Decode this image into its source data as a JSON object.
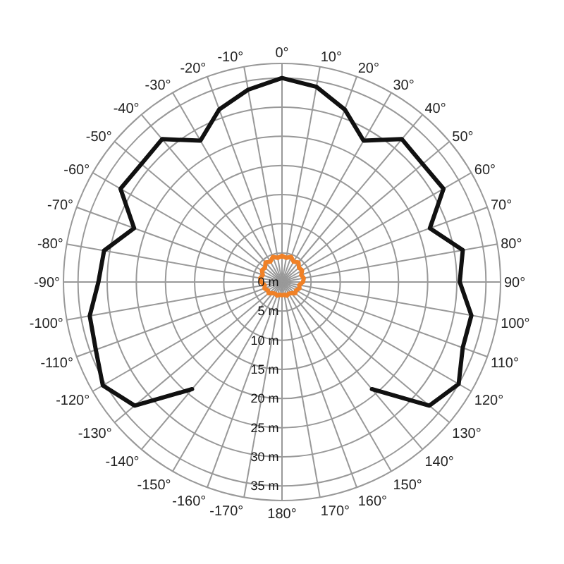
{
  "chart_data": {
    "type": "radar",
    "categories": [
      "0°",
      "10°",
      "20°",
      "30°",
      "40°",
      "50°",
      "60°",
      "70°",
      "80°",
      "90°",
      "100°",
      "110°",
      "120°",
      "130°",
      "140°",
      "150°",
      "160°",
      "170°",
      "180°",
      "-170°",
      "-160°",
      "-150°",
      "-140°",
      "-130°",
      "-120°",
      "-110°",
      "-100°",
      "-90°",
      "-80°",
      "-70°",
      "-60°",
      "-50°",
      "-40°",
      "-30°",
      "-20°",
      "-10°"
    ],
    "series": [
      {
        "color": "#111111",
        "values": [
          35,
          34,
          31.5,
          28,
          32,
          31.5,
          32,
          27,
          31.5,
          30.5,
          33,
          33,
          35,
          33,
          24,
          null,
          null,
          null,
          null,
          null,
          null,
          null,
          24,
          33,
          35.5,
          34,
          33.5,
          31.5,
          31,
          27,
          32,
          31.5,
          32,
          28,
          31.5,
          33.5
        ]
      },
      {
        "color": "#f08127",
        "values": [
          4.5,
          4.2,
          4.6,
          4,
          4.4,
          3.8,
          4,
          3.5,
          3.8,
          3.6,
          3,
          3.2,
          2.8,
          3,
          2.5,
          2.3,
          2.5,
          2.2,
          2.3,
          2.2,
          2.5,
          2.3,
          2.5,
          3,
          2.8,
          3.2,
          3,
          3.6,
          3.8,
          3.5,
          4,
          3.8,
          4.4,
          4,
          4.6,
          4.2
        ]
      }
    ],
    "ylim": [
      0,
      37.5
    ],
    "yticks": [
      {
        "value": 0,
        "label": "0 m"
      },
      {
        "value": 5,
        "label": "5 m"
      },
      {
        "value": 10,
        "label": "10 m"
      },
      {
        "value": 15,
        "label": "15 m"
      },
      {
        "value": 20,
        "label": "20 m"
      },
      {
        "value": 25,
        "label": "25 m"
      },
      {
        "value": 30,
        "label": "30 m"
      },
      {
        "value": 35,
        "label": "35 m"
      }
    ],
    "grid": true
  }
}
